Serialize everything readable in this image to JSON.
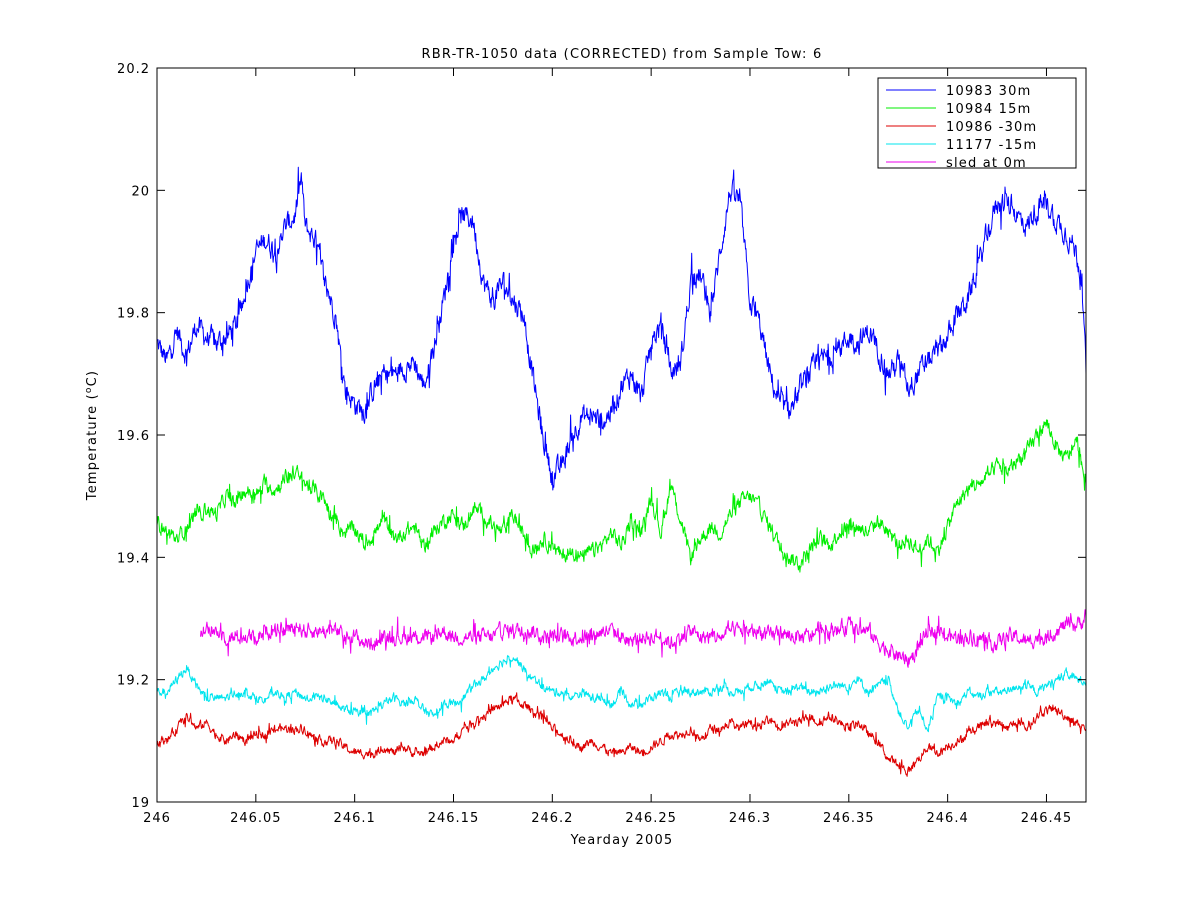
{
  "chart_data": {
    "type": "line",
    "title": "RBR-TR-1050 data (CORRECTED) from Sample Tow: 6",
    "xlabel": "Yearday 2005",
    "ylabel": "Temperature (°C)",
    "ylabel_parts": {
      "pre": "Temperature (",
      "sup": "o",
      "post": "C)"
    },
    "xlim": [
      246,
      246.47
    ],
    "ylim": [
      19,
      20.2
    ],
    "xticks": [
      246,
      246.05,
      246.1,
      246.15,
      246.2,
      246.25,
      246.3,
      246.35,
      246.4,
      246.45
    ],
    "xtick_labels": [
      "246",
      "246.05",
      "246.1",
      "246.15",
      "246.2",
      "246.25",
      "246.3",
      "246.35",
      "246.4",
      "246.45"
    ],
    "yticks": [
      19,
      19.2,
      19.4,
      19.6,
      19.8,
      20,
      20.2
    ],
    "ytick_labels": [
      "19",
      "19.2",
      "19.4",
      "19.6",
      "19.8",
      "20",
      "20.2"
    ],
    "grid": false,
    "legend_position": "top-right",
    "series": [
      {
        "name": "10983 30m",
        "color": "#0000ff",
        "noise": 0.015,
        "x": [
          246.0,
          246.005,
          246.01,
          246.015,
          246.02,
          246.025,
          246.03,
          246.035,
          246.04,
          246.045,
          246.05,
          246.055,
          246.06,
          246.065,
          246.07,
          246.073,
          246.075,
          246.08,
          246.085,
          246.09,
          246.095,
          246.1,
          246.105,
          246.11,
          246.115,
          246.12,
          246.125,
          246.13,
          246.135,
          246.14,
          246.145,
          246.15,
          246.155,
          246.16,
          246.165,
          246.17,
          246.175,
          246.18,
          246.185,
          246.19,
          246.195,
          246.2,
          246.205,
          246.21,
          246.215,
          246.22,
          246.225,
          246.23,
          246.235,
          246.24,
          246.245,
          246.25,
          246.255,
          246.26,
          246.265,
          246.27,
          246.275,
          246.28,
          246.285,
          246.29,
          246.295,
          246.3,
          246.305,
          246.31,
          246.315,
          246.32,
          246.325,
          246.33,
          246.335,
          246.34,
          246.345,
          246.35,
          246.355,
          246.36,
          246.365,
          246.37,
          246.375,
          246.38,
          246.385,
          246.39,
          246.395,
          246.4,
          246.405,
          246.41,
          246.415,
          246.42,
          246.425,
          246.43,
          246.435,
          246.44,
          246.445,
          246.45,
          246.455,
          246.46,
          246.465,
          246.468,
          246.47
        ],
        "y": [
          19.75,
          19.72,
          19.77,
          19.73,
          19.78,
          19.76,
          19.75,
          19.76,
          19.78,
          19.84,
          19.9,
          19.92,
          19.9,
          19.94,
          19.96,
          20.02,
          19.94,
          19.92,
          19.85,
          19.8,
          19.68,
          19.65,
          19.64,
          19.68,
          19.7,
          19.7,
          19.71,
          19.72,
          19.68,
          19.74,
          19.82,
          19.92,
          19.96,
          19.95,
          19.85,
          19.82,
          19.85,
          19.82,
          19.8,
          19.7,
          19.6,
          19.53,
          19.55,
          19.6,
          19.63,
          19.63,
          19.62,
          19.64,
          19.68,
          19.7,
          19.66,
          19.75,
          19.78,
          19.7,
          19.72,
          19.85,
          19.86,
          19.8,
          19.9,
          20.0,
          19.98,
          19.82,
          19.78,
          19.7,
          19.65,
          19.64,
          19.67,
          19.7,
          19.72,
          19.73,
          19.74,
          19.76,
          19.75,
          19.77,
          19.74,
          19.7,
          19.72,
          19.68,
          19.7,
          19.72,
          19.74,
          19.76,
          19.8,
          19.82,
          19.87,
          19.93,
          19.98,
          19.98,
          19.96,
          19.94,
          19.97,
          19.98,
          19.95,
          19.93,
          19.9,
          19.85,
          19.7
        ]
      },
      {
        "name": "10984 15m",
        "color": "#00ee00",
        "noise": 0.01,
        "x": [
          246.0,
          246.005,
          246.01,
          246.015,
          246.02,
          246.025,
          246.03,
          246.035,
          246.04,
          246.045,
          246.05,
          246.055,
          246.06,
          246.065,
          246.07,
          246.075,
          246.08,
          246.085,
          246.09,
          246.095,
          246.1,
          246.105,
          246.11,
          246.115,
          246.12,
          246.125,
          246.13,
          246.135,
          246.14,
          246.145,
          246.15,
          246.155,
          246.16,
          246.165,
          246.17,
          246.175,
          246.18,
          246.185,
          246.19,
          246.195,
          246.2,
          246.205,
          246.21,
          246.215,
          246.22,
          246.225,
          246.23,
          246.235,
          246.24,
          246.245,
          246.25,
          246.255,
          246.26,
          246.265,
          246.27,
          246.275,
          246.28,
          246.285,
          246.29,
          246.295,
          246.3,
          246.305,
          246.31,
          246.315,
          246.32,
          246.325,
          246.33,
          246.335,
          246.34,
          246.345,
          246.35,
          246.355,
          246.36,
          246.365,
          246.37,
          246.375,
          246.38,
          246.385,
          246.39,
          246.395,
          246.4,
          246.405,
          246.41,
          246.415,
          246.42,
          246.425,
          246.43,
          246.435,
          246.44,
          246.445,
          246.45,
          246.455,
          246.46,
          246.465,
          246.47
        ],
        "y": [
          19.46,
          19.44,
          19.43,
          19.45,
          19.47,
          19.48,
          19.47,
          19.5,
          19.49,
          19.51,
          19.5,
          19.52,
          19.51,
          19.53,
          19.54,
          19.52,
          19.51,
          19.49,
          19.46,
          19.44,
          19.45,
          19.42,
          19.44,
          19.46,
          19.43,
          19.44,
          19.45,
          19.42,
          19.44,
          19.46,
          19.47,
          19.45,
          19.48,
          19.47,
          19.45,
          19.44,
          19.47,
          19.44,
          19.41,
          19.43,
          19.42,
          19.4,
          19.41,
          19.4,
          19.41,
          19.42,
          19.44,
          19.42,
          19.46,
          19.44,
          19.5,
          19.44,
          19.52,
          19.46,
          19.4,
          19.43,
          19.45,
          19.44,
          19.47,
          19.49,
          19.5,
          19.48,
          19.45,
          19.42,
          19.4,
          19.39,
          19.41,
          19.43,
          19.42,
          19.44,
          19.45,
          19.45,
          19.44,
          19.46,
          19.44,
          19.42,
          19.43,
          19.41,
          19.43,
          19.41,
          19.45,
          19.49,
          19.51,
          19.52,
          19.53,
          19.55,
          19.54,
          19.56,
          19.57,
          19.6,
          19.62,
          19.58,
          19.56,
          19.59,
          19.52
        ]
      },
      {
        "name": "10986 -30m",
        "color": "#dd0000",
        "noise": 0.006,
        "x": [
          246.0,
          246.005,
          246.01,
          246.015,
          246.02,
          246.025,
          246.03,
          246.035,
          246.04,
          246.045,
          246.05,
          246.055,
          246.06,
          246.065,
          246.07,
          246.075,
          246.08,
          246.085,
          246.09,
          246.095,
          246.1,
          246.105,
          246.11,
          246.115,
          246.12,
          246.125,
          246.13,
          246.135,
          246.14,
          246.145,
          246.15,
          246.155,
          246.16,
          246.165,
          246.17,
          246.175,
          246.18,
          246.185,
          246.19,
          246.195,
          246.2,
          246.205,
          246.21,
          246.215,
          246.22,
          246.225,
          246.23,
          246.235,
          246.24,
          246.245,
          246.25,
          246.255,
          246.26,
          246.265,
          246.27,
          246.275,
          246.28,
          246.285,
          246.29,
          246.295,
          246.3,
          246.305,
          246.31,
          246.315,
          246.32,
          246.325,
          246.33,
          246.335,
          246.34,
          246.345,
          246.35,
          246.355,
          246.36,
          246.365,
          246.37,
          246.375,
          246.38,
          246.385,
          246.39,
          246.395,
          246.4,
          246.405,
          246.41,
          246.415,
          246.42,
          246.425,
          246.43,
          246.435,
          246.44,
          246.445,
          246.45,
          246.455,
          246.46,
          246.465,
          246.47
        ],
        "y": [
          19.1,
          19.1,
          19.12,
          19.14,
          19.12,
          19.13,
          19.11,
          19.1,
          19.11,
          19.1,
          19.11,
          19.11,
          19.12,
          19.12,
          19.12,
          19.12,
          19.1,
          19.1,
          19.1,
          19.09,
          19.08,
          19.08,
          19.08,
          19.09,
          19.08,
          19.09,
          19.08,
          19.08,
          19.09,
          19.1,
          19.1,
          19.12,
          19.13,
          19.14,
          19.15,
          19.16,
          19.17,
          19.16,
          19.15,
          19.14,
          19.12,
          19.11,
          19.1,
          19.09,
          19.1,
          19.09,
          19.08,
          19.08,
          19.09,
          19.08,
          19.09,
          19.1,
          19.11,
          19.11,
          19.12,
          19.1,
          19.12,
          19.12,
          19.13,
          19.12,
          19.13,
          19.12,
          19.14,
          19.12,
          19.13,
          19.13,
          19.14,
          19.13,
          19.14,
          19.13,
          19.12,
          19.13,
          19.11,
          19.1,
          19.07,
          19.06,
          19.05,
          19.07,
          19.09,
          19.08,
          19.09,
          19.1,
          19.11,
          19.12,
          19.13,
          19.13,
          19.12,
          19.13,
          19.12,
          19.14,
          19.15,
          19.15,
          19.14,
          19.13,
          19.12
        ]
      },
      {
        "name": "11177 -15m",
        "color": "#00e5ee",
        "noise": 0.006,
        "x": [
          246.0,
          246.005,
          246.01,
          246.015,
          246.02,
          246.025,
          246.03,
          246.035,
          246.04,
          246.045,
          246.05,
          246.055,
          246.06,
          246.065,
          246.07,
          246.075,
          246.08,
          246.085,
          246.09,
          246.095,
          246.1,
          246.105,
          246.11,
          246.115,
          246.12,
          246.125,
          246.13,
          246.135,
          246.14,
          246.145,
          246.15,
          246.155,
          246.16,
          246.165,
          246.17,
          246.175,
          246.18,
          246.185,
          246.19,
          246.195,
          246.2,
          246.205,
          246.21,
          246.215,
          246.22,
          246.225,
          246.23,
          246.235,
          246.24,
          246.245,
          246.25,
          246.255,
          246.26,
          246.265,
          246.27,
          246.275,
          246.28,
          246.285,
          246.29,
          246.295,
          246.3,
          246.305,
          246.31,
          246.315,
          246.32,
          246.325,
          246.33,
          246.335,
          246.34,
          246.345,
          246.35,
          246.355,
          246.36,
          246.365,
          246.37,
          246.375,
          246.38,
          246.385,
          246.39,
          246.395,
          246.4,
          246.405,
          246.41,
          246.415,
          246.42,
          246.425,
          246.43,
          246.435,
          246.44,
          246.445,
          246.45,
          246.455,
          246.46,
          246.465,
          246.47
        ],
        "y": [
          19.18,
          19.18,
          19.2,
          19.22,
          19.19,
          19.17,
          19.17,
          19.17,
          19.18,
          19.18,
          19.17,
          19.17,
          19.18,
          19.17,
          19.18,
          19.17,
          19.17,
          19.17,
          19.16,
          19.15,
          19.15,
          19.14,
          19.15,
          19.16,
          19.17,
          19.16,
          19.17,
          19.15,
          19.14,
          19.16,
          19.16,
          19.17,
          19.19,
          19.2,
          19.22,
          19.23,
          19.24,
          19.22,
          19.2,
          19.19,
          19.18,
          19.18,
          19.17,
          19.18,
          19.17,
          19.17,
          19.16,
          19.18,
          19.16,
          19.16,
          19.17,
          19.18,
          19.17,
          19.18,
          19.18,
          19.18,
          19.18,
          19.19,
          19.18,
          19.18,
          19.19,
          19.19,
          19.2,
          19.18,
          19.18,
          19.19,
          19.18,
          19.18,
          19.19,
          19.19,
          19.19,
          19.2,
          19.18,
          19.19,
          19.2,
          19.15,
          19.12,
          19.15,
          19.12,
          19.17,
          19.17,
          19.16,
          19.18,
          19.17,
          19.18,
          19.18,
          19.18,
          19.19,
          19.19,
          19.18,
          19.19,
          19.2,
          19.21,
          19.2,
          19.2
        ]
      },
      {
        "name": "sled at 0m",
        "color": "#ee00ee",
        "noise": 0.01,
        "x": [
          246.022,
          246.025,
          246.03,
          246.035,
          246.04,
          246.045,
          246.05,
          246.055,
          246.06,
          246.065,
          246.07,
          246.075,
          246.08,
          246.085,
          246.09,
          246.095,
          246.1,
          246.105,
          246.11,
          246.115,
          246.12,
          246.125,
          246.13,
          246.135,
          246.14,
          246.145,
          246.15,
          246.155,
          246.16,
          246.165,
          246.17,
          246.175,
          246.18,
          246.185,
          246.19,
          246.195,
          246.2,
          246.205,
          246.21,
          246.215,
          246.22,
          246.225,
          246.23,
          246.235,
          246.24,
          246.245,
          246.25,
          246.255,
          246.26,
          246.265,
          246.27,
          246.275,
          246.28,
          246.285,
          246.29,
          246.295,
          246.3,
          246.305,
          246.31,
          246.315,
          246.32,
          246.325,
          246.33,
          246.335,
          246.34,
          246.345,
          246.35,
          246.355,
          246.36,
          246.365,
          246.37,
          246.375,
          246.38,
          246.385,
          246.39,
          246.395,
          246.4,
          246.405,
          246.41,
          246.415,
          246.42,
          246.425,
          246.43,
          246.435,
          246.44,
          246.445,
          246.45,
          246.455,
          246.46,
          246.465,
          246.47
        ],
        "y": [
          19.28,
          19.28,
          19.28,
          19.27,
          19.27,
          19.27,
          19.27,
          19.28,
          19.28,
          19.28,
          19.29,
          19.28,
          19.28,
          19.28,
          19.28,
          19.27,
          19.27,
          19.26,
          19.26,
          19.27,
          19.27,
          19.27,
          19.27,
          19.27,
          19.27,
          19.28,
          19.27,
          19.27,
          19.27,
          19.27,
          19.27,
          19.28,
          19.28,
          19.28,
          19.28,
          19.27,
          19.27,
          19.27,
          19.27,
          19.27,
          19.27,
          19.28,
          19.28,
          19.27,
          19.26,
          19.27,
          19.27,
          19.27,
          19.26,
          19.27,
          19.28,
          19.27,
          19.27,
          19.27,
          19.28,
          19.28,
          19.28,
          19.28,
          19.27,
          19.28,
          19.27,
          19.27,
          19.27,
          19.28,
          19.28,
          19.28,
          19.29,
          19.28,
          19.28,
          19.26,
          19.25,
          19.24,
          19.23,
          19.25,
          19.28,
          19.28,
          19.27,
          19.27,
          19.27,
          19.27,
          19.26,
          19.26,
          19.27,
          19.27,
          19.26,
          19.27,
          19.27,
          19.28,
          19.29,
          19.29,
          19.3
        ]
      }
    ]
  }
}
